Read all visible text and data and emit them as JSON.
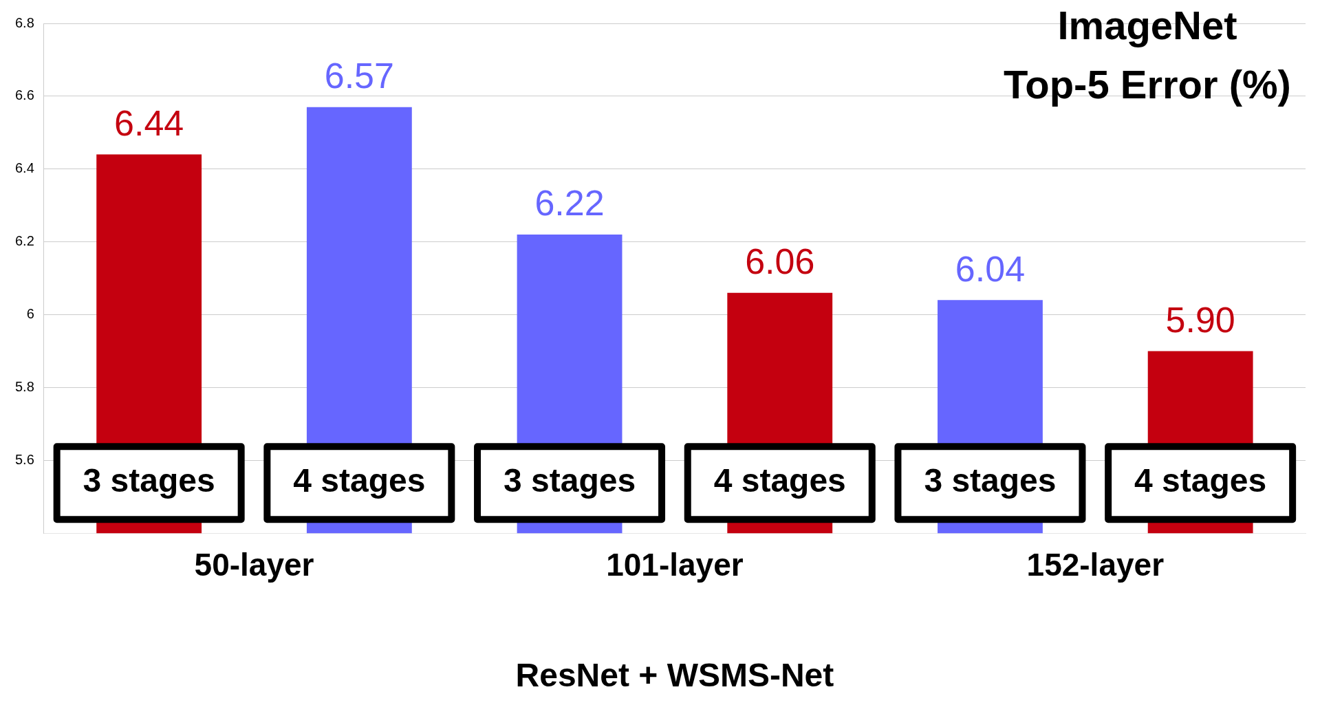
{
  "chart_data": {
    "type": "bar",
    "title": "ImageNet\nTop-5 Error (%)",
    "xlabel": "ResNet + WSMS-Net",
    "categories": [
      "50-layer",
      "101-layer",
      "152-layer"
    ],
    "series": [
      {
        "name": "3 stages",
        "colors": [
          "#c4000f",
          "#6666ff",
          "#6666ff"
        ],
        "values": [
          6.44,
          6.22,
          6.04
        ],
        "value_labels": [
          "6.44",
          "6.22",
          "6.04"
        ]
      },
      {
        "name": "4 stages",
        "colors": [
          "#6666ff",
          "#c4000f",
          "#c4000f"
        ],
        "values": [
          6.57,
          6.06,
          5.9
        ],
        "value_labels": [
          "6.57",
          "6.06",
          "5.90"
        ]
      }
    ],
    "ylim": [
      5.4,
      6.8
    ],
    "yticks": [
      5.6,
      5.8,
      6,
      6.2,
      6.4,
      6.6,
      6.8
    ],
    "grid": "y",
    "legend": false
  }
}
